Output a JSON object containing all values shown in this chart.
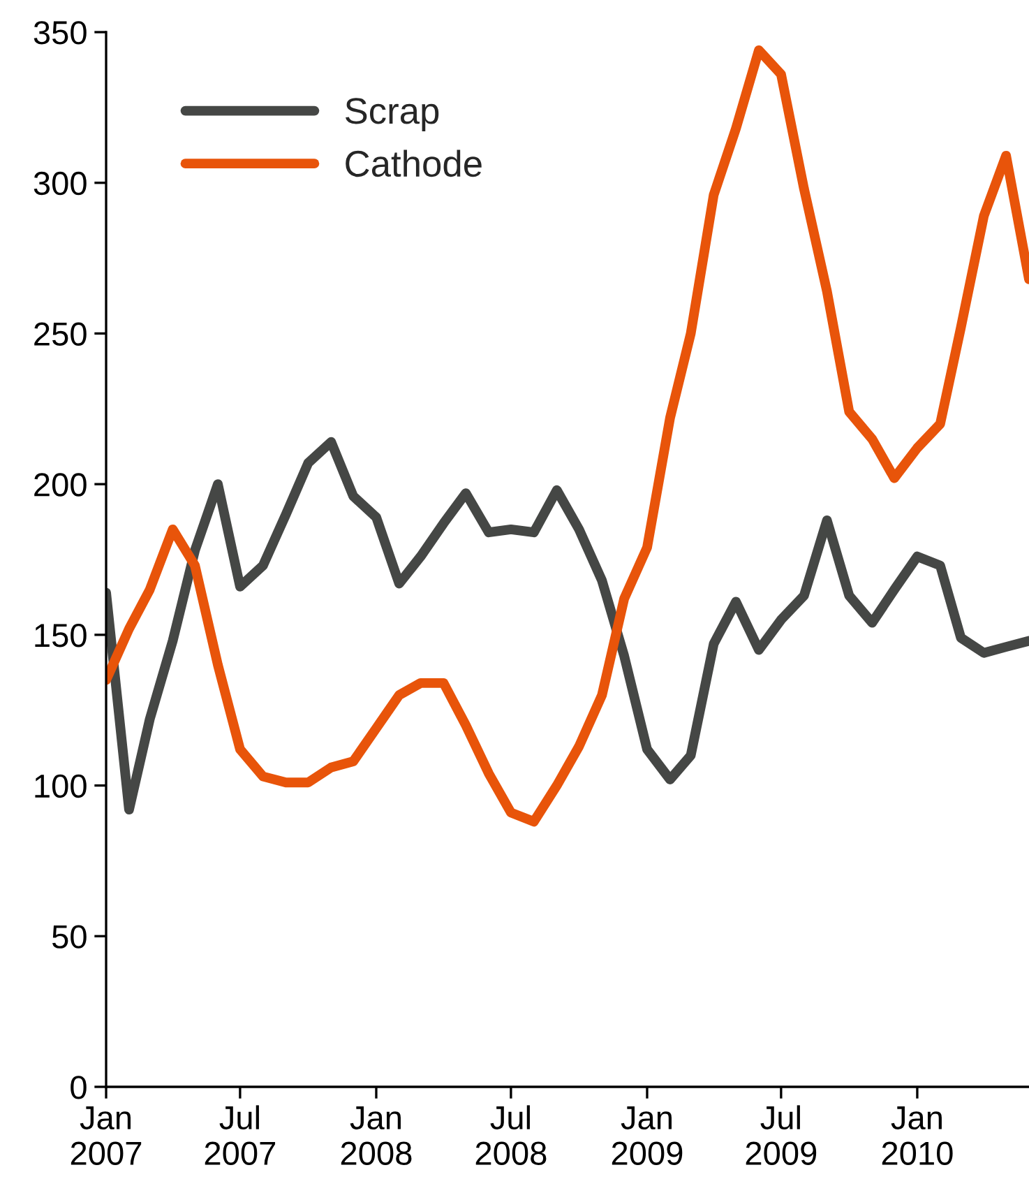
{
  "chart_data": {
    "type": "line",
    "x": [
      "2007-01",
      "2007-02",
      "2007-03",
      "2007-04",
      "2007-05",
      "2007-06",
      "2007-07",
      "2007-08",
      "2007-09",
      "2007-10",
      "2007-11",
      "2007-12",
      "2008-01",
      "2008-02",
      "2008-03",
      "2008-04",
      "2008-05",
      "2008-06",
      "2008-07",
      "2008-08",
      "2008-09",
      "2008-10",
      "2008-11",
      "2008-12",
      "2009-01",
      "2009-02",
      "2009-03",
      "2009-04",
      "2009-05",
      "2009-06",
      "2009-07",
      "2009-08",
      "2009-09",
      "2009-10",
      "2009-11",
      "2009-12",
      "2010-01",
      "2010-02",
      "2010-03",
      "2010-04",
      "2010-05",
      "2010-06"
    ],
    "series": [
      {
        "name": "Scrap",
        "color": "#454745",
        "values": [
          164,
          92,
          122,
          148,
          178,
          200,
          166,
          173,
          190,
          207,
          214,
          196,
          189,
          167,
          176,
          187,
          197,
          184,
          185,
          184,
          198,
          185,
          168,
          143,
          112,
          102,
          110,
          147,
          161,
          145,
          155,
          163,
          188,
          163,
          154,
          165,
          176,
          173,
          149,
          144,
          146,
          148
        ]
      },
      {
        "name": "Cathode",
        "color": "#e8540a",
        "values": [
          135,
          152,
          165,
          185,
          173,
          140,
          112,
          103,
          101,
          101,
          106,
          108,
          119,
          130,
          134,
          134,
          120,
          104,
          91,
          88,
          100,
          113,
          130,
          162,
          179,
          222,
          250,
          296,
          318,
          344,
          336,
          298,
          264,
          224,
          215,
          202,
          212,
          220,
          252,
          289,
          309,
          268
        ]
      }
    ],
    "xlim": [
      "2007-01",
      "2010-06"
    ],
    "xticks": [
      {
        "value": "2007-01",
        "label": "Jan\n2007"
      },
      {
        "value": "2007-07",
        "label": "Jul\n2007"
      },
      {
        "value": "2008-01",
        "label": "Jan\n2008"
      },
      {
        "value": "2008-07",
        "label": "Jul\n2008"
      },
      {
        "value": "2009-01",
        "label": "Jan\n2009"
      },
      {
        "value": "2009-07",
        "label": "Jul\n2009"
      },
      {
        "value": "2010-01",
        "label": "Jan\n2010"
      }
    ],
    "ylim": [
      0,
      350
    ],
    "yticks": [
      0,
      50,
      100,
      150,
      200,
      250,
      300,
      350
    ],
    "grid": false,
    "legend": "top left",
    "marker": "none",
    "line_style": "solid"
  }
}
